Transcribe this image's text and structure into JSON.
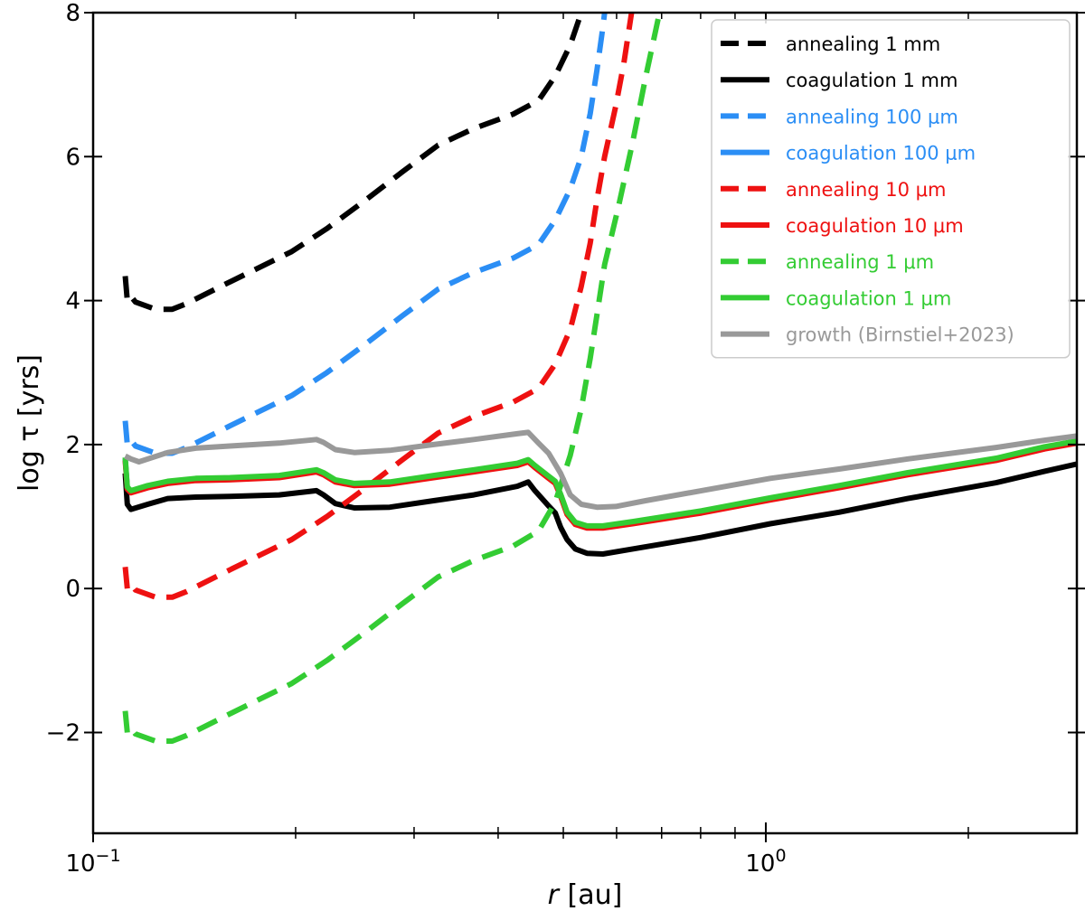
{
  "chart_data": {
    "type": "line",
    "xlabel": "r [au]",
    "ylabel": "log τ [yrs]",
    "xscale": "log",
    "xlim": [
      0.1,
      2.9
    ],
    "ylim": [
      -3.4,
      8
    ],
    "grid": false,
    "legend_position": "top-right",
    "x_ticks": [
      {
        "value": 0.1,
        "base": "10",
        "exp": "−1"
      },
      {
        "value": 1,
        "base": "10",
        "exp": "0"
      }
    ],
    "y_ticks": [
      {
        "value": -2,
        "label": "−2"
      },
      {
        "value": 0,
        "label": "0"
      },
      {
        "value": 2,
        "label": "2"
      },
      {
        "value": 4,
        "label": "4"
      },
      {
        "value": 6,
        "label": "6"
      },
      {
        "value": 8,
        "label": "8"
      }
    ],
    "minor_x_ticks": [
      0.2,
      0.3,
      0.4,
      0.5,
      0.6,
      0.7,
      0.8,
      0.9,
      2
    ],
    "series": [
      {
        "name": "annealing 1 mm",
        "color": "#000000",
        "dash": true,
        "points": [
          [
            0.1116,
            4.34
          ],
          [
            0.1124,
            4.0
          ],
          [
            0.1138,
            4.06
          ],
          [
            0.1156,
            3.98
          ],
          [
            0.1238,
            3.88
          ],
          [
            0.1311,
            3.88
          ],
          [
            0.1378,
            3.96
          ],
          [
            0.1597,
            4.26
          ],
          [
            0.1973,
            4.68
          ],
          [
            0.2226,
            5.0
          ],
          [
            0.2527,
            5.38
          ],
          [
            0.2884,
            5.79
          ],
          [
            0.3258,
            6.16
          ],
          [
            0.368,
            6.39
          ],
          [
            0.4211,
            6.59
          ],
          [
            0.4593,
            6.78
          ],
          [
            0.4864,
            7.12
          ],
          [
            0.5121,
            7.55
          ],
          [
            0.5317,
            8.0
          ]
        ]
      },
      {
        "name": "coagulation 1 mm",
        "color": "#000000",
        "dash": false,
        "points": [
          [
            0.1116,
            1.6
          ],
          [
            0.1124,
            1.17
          ],
          [
            0.1138,
            1.1
          ],
          [
            0.1205,
            1.17
          ],
          [
            0.1291,
            1.25
          ],
          [
            0.1421,
            1.27
          ],
          [
            0.1597,
            1.28
          ],
          [
            0.189,
            1.3
          ],
          [
            0.2148,
            1.36
          ],
          [
            0.22,
            1.3
          ],
          [
            0.2291,
            1.18
          ],
          [
            0.2445,
            1.12
          ],
          [
            0.276,
            1.13
          ],
          [
            0.3208,
            1.22
          ],
          [
            0.368,
            1.3
          ],
          [
            0.4271,
            1.42
          ],
          [
            0.4434,
            1.48
          ],
          [
            0.4536,
            1.36
          ],
          [
            0.474,
            1.16
          ],
          [
            0.4864,
            1.05
          ],
          [
            0.4955,
            0.85
          ],
          [
            0.5065,
            0.68
          ],
          [
            0.5209,
            0.55
          ],
          [
            0.5422,
            0.49
          ],
          [
            0.5725,
            0.48
          ],
          [
            0.634,
            0.55
          ],
          [
            0.8024,
            0.71
          ],
          [
            1.0154,
            0.9
          ],
          [
            1.2845,
            1.06
          ],
          [
            1.6258,
            1.25
          ],
          [
            2.2003,
            1.47
          ],
          [
            2.5985,
            1.63
          ],
          [
            2.9,
            1.73
          ]
        ]
      },
      {
        "name": "annealing 100 μm",
        "color": "#2b8ef5",
        "dash": true,
        "points": [
          [
            0.1116,
            2.33
          ],
          [
            0.1124,
            2.0
          ],
          [
            0.1138,
            2.06
          ],
          [
            0.1156,
            1.98
          ],
          [
            0.1238,
            1.88
          ],
          [
            0.1311,
            1.88
          ],
          [
            0.1378,
            1.96
          ],
          [
            0.1597,
            2.26
          ],
          [
            0.1973,
            2.68
          ],
          [
            0.2226,
            3.0
          ],
          [
            0.2527,
            3.38
          ],
          [
            0.2884,
            3.79
          ],
          [
            0.3258,
            4.16
          ],
          [
            0.368,
            4.39
          ],
          [
            0.4211,
            4.59
          ],
          [
            0.4593,
            4.78
          ],
          [
            0.4864,
            5.12
          ],
          [
            0.5121,
            5.55
          ],
          [
            0.5317,
            6.0
          ],
          [
            0.5482,
            6.6
          ],
          [
            0.5609,
            7.2
          ],
          [
            0.5725,
            7.8
          ],
          [
            0.5759,
            8.0
          ]
        ]
      },
      {
        "name": "coagulation 100 μm",
        "color": "#2b8ef5",
        "dash": false,
        "points": [
          [
            0.1116,
            1.8
          ],
          [
            0.1124,
            1.4
          ],
          [
            0.1138,
            1.35
          ],
          [
            0.1205,
            1.42
          ],
          [
            0.1291,
            1.48
          ],
          [
            0.1421,
            1.52
          ],
          [
            0.1597,
            1.53
          ],
          [
            0.189,
            1.56
          ],
          [
            0.2148,
            1.64
          ],
          [
            0.22,
            1.6
          ],
          [
            0.2291,
            1.5
          ],
          [
            0.2445,
            1.45
          ],
          [
            0.276,
            1.47
          ],
          [
            0.3208,
            1.56
          ],
          [
            0.368,
            1.64
          ],
          [
            0.4271,
            1.73
          ],
          [
            0.4434,
            1.78
          ],
          [
            0.4536,
            1.7
          ],
          [
            0.474,
            1.56
          ],
          [
            0.4864,
            1.48
          ],
          [
            0.4955,
            1.3
          ],
          [
            0.5065,
            1.05
          ],
          [
            0.5209,
            0.91
          ],
          [
            0.5422,
            0.86
          ],
          [
            0.5725,
            0.86
          ],
          [
            0.634,
            0.92
          ],
          [
            0.8024,
            1.07
          ],
          [
            1.0154,
            1.25
          ],
          [
            1.2845,
            1.42
          ],
          [
            1.6258,
            1.6
          ],
          [
            2.2003,
            1.8
          ],
          [
            2.5985,
            1.96
          ],
          [
            2.9,
            2.04
          ]
        ]
      },
      {
        "name": "annealing 10 μm",
        "color": "#ee1111",
        "dash": true,
        "points": [
          [
            0.1116,
            0.3
          ],
          [
            0.1124,
            0.0
          ],
          [
            0.1138,
            0.06
          ],
          [
            0.1156,
            -0.02
          ],
          [
            0.1238,
            -0.12
          ],
          [
            0.1311,
            -0.12
          ],
          [
            0.1378,
            -0.04
          ],
          [
            0.1597,
            0.26
          ],
          [
            0.1973,
            0.68
          ],
          [
            0.2226,
            1.0
          ],
          [
            0.2527,
            1.38
          ],
          [
            0.2884,
            1.79
          ],
          [
            0.3258,
            2.16
          ],
          [
            0.368,
            2.39
          ],
          [
            0.4211,
            2.59
          ],
          [
            0.4593,
            2.78
          ],
          [
            0.4864,
            3.12
          ],
          [
            0.5121,
            3.6
          ],
          [
            0.5317,
            4.2
          ],
          [
            0.5482,
            4.8
          ],
          [
            0.5609,
            5.4
          ],
          [
            0.5759,
            6.0
          ],
          [
            0.5982,
            6.7
          ],
          [
            0.6151,
            7.3
          ],
          [
            0.6315,
            8.0
          ]
        ]
      },
      {
        "name": "coagulation 10 μm",
        "color": "#ee1111",
        "dash": false,
        "points": [
          [
            0.1116,
            1.78
          ],
          [
            0.1124,
            1.38
          ],
          [
            0.1138,
            1.33
          ],
          [
            0.1205,
            1.4
          ],
          [
            0.1291,
            1.46
          ],
          [
            0.1421,
            1.5
          ],
          [
            0.1597,
            1.51
          ],
          [
            0.189,
            1.54
          ],
          [
            0.2148,
            1.62
          ],
          [
            0.22,
            1.58
          ],
          [
            0.2291,
            1.48
          ],
          [
            0.2445,
            1.43
          ],
          [
            0.276,
            1.45
          ],
          [
            0.3208,
            1.54
          ],
          [
            0.368,
            1.62
          ],
          [
            0.4271,
            1.71
          ],
          [
            0.4434,
            1.76
          ],
          [
            0.4536,
            1.68
          ],
          [
            0.474,
            1.54
          ],
          [
            0.4864,
            1.46
          ],
          [
            0.4955,
            1.28
          ],
          [
            0.5065,
            1.03
          ],
          [
            0.5209,
            0.89
          ],
          [
            0.5422,
            0.84
          ],
          [
            0.5725,
            0.84
          ],
          [
            0.634,
            0.9
          ],
          [
            0.8024,
            1.05
          ],
          [
            1.0154,
            1.23
          ],
          [
            1.2845,
            1.4
          ],
          [
            1.6258,
            1.58
          ],
          [
            2.2003,
            1.78
          ],
          [
            2.5985,
            1.94
          ],
          [
            2.9,
            2.02
          ]
        ]
      },
      {
        "name": "annealing 1 μm",
        "color": "#33cc33",
        "dash": true,
        "points": [
          [
            0.1116,
            -1.7
          ],
          [
            0.1124,
            -2.0
          ],
          [
            0.1138,
            -1.94
          ],
          [
            0.1156,
            -2.02
          ],
          [
            0.1238,
            -2.12
          ],
          [
            0.1311,
            -2.12
          ],
          [
            0.1378,
            -2.04
          ],
          [
            0.1597,
            -1.74
          ],
          [
            0.1973,
            -1.32
          ],
          [
            0.2226,
            -1.0
          ],
          [
            0.2527,
            -0.62
          ],
          [
            0.2884,
            -0.21
          ],
          [
            0.3258,
            0.16
          ],
          [
            0.368,
            0.39
          ],
          [
            0.4211,
            0.59
          ],
          [
            0.4593,
            0.8
          ],
          [
            0.4864,
            1.2
          ],
          [
            0.5121,
            1.85
          ],
          [
            0.5317,
            2.5
          ],
          [
            0.5482,
            3.2
          ],
          [
            0.5609,
            3.8
          ],
          [
            0.5759,
            4.5
          ],
          [
            0.6037,
            5.3
          ],
          [
            0.634,
            6.2
          ],
          [
            0.6626,
            7.1
          ],
          [
            0.695,
            8.0
          ]
        ]
      },
      {
        "name": "coagulation 1 μm",
        "color": "#33cc33",
        "dash": false,
        "points": [
          [
            0.1116,
            1.82
          ],
          [
            0.1124,
            1.41
          ],
          [
            0.1138,
            1.36
          ],
          [
            0.1205,
            1.43
          ],
          [
            0.1291,
            1.49
          ],
          [
            0.1421,
            1.53
          ],
          [
            0.1597,
            1.54
          ],
          [
            0.189,
            1.57
          ],
          [
            0.2148,
            1.65
          ],
          [
            0.22,
            1.61
          ],
          [
            0.2291,
            1.51
          ],
          [
            0.2445,
            1.46
          ],
          [
            0.276,
            1.48
          ],
          [
            0.3208,
            1.57
          ],
          [
            0.368,
            1.65
          ],
          [
            0.4271,
            1.74
          ],
          [
            0.4434,
            1.79
          ],
          [
            0.4536,
            1.71
          ],
          [
            0.474,
            1.57
          ],
          [
            0.4864,
            1.49
          ],
          [
            0.4955,
            1.31
          ],
          [
            0.5065,
            1.06
          ],
          [
            0.5209,
            0.92
          ],
          [
            0.5422,
            0.87
          ],
          [
            0.5725,
            0.87
          ],
          [
            0.634,
            0.93
          ],
          [
            0.8024,
            1.08
          ],
          [
            1.0154,
            1.26
          ],
          [
            1.2845,
            1.43
          ],
          [
            1.6258,
            1.61
          ],
          [
            2.2003,
            1.81
          ],
          [
            2.5985,
            1.97
          ],
          [
            2.9,
            2.05
          ]
        ]
      },
      {
        "name": "growth (Birnstiel+2023)",
        "color": "#999999",
        "dash": false,
        "points": [
          [
            0.1116,
            1.84
          ],
          [
            0.1138,
            1.8
          ],
          [
            0.117,
            1.76
          ],
          [
            0.1291,
            1.89
          ],
          [
            0.1421,
            1.95
          ],
          [
            0.1597,
            1.98
          ],
          [
            0.189,
            2.02
          ],
          [
            0.2148,
            2.07
          ],
          [
            0.22,
            2.03
          ],
          [
            0.2291,
            1.93
          ],
          [
            0.2445,
            1.89
          ],
          [
            0.276,
            1.92
          ],
          [
            0.3208,
            2.0
          ],
          [
            0.368,
            2.07
          ],
          [
            0.4271,
            2.15
          ],
          [
            0.4434,
            2.17
          ],
          [
            0.4593,
            2.02
          ],
          [
            0.4755,
            1.88
          ],
          [
            0.4955,
            1.6
          ],
          [
            0.5121,
            1.3
          ],
          [
            0.5317,
            1.17
          ],
          [
            0.5609,
            1.13
          ],
          [
            0.5982,
            1.14
          ],
          [
            0.6626,
            1.22
          ],
          [
            0.8024,
            1.36
          ],
          [
            1.0154,
            1.53
          ],
          [
            1.2845,
            1.66
          ],
          [
            1.6258,
            1.8
          ],
          [
            2.2003,
            1.96
          ],
          [
            2.5985,
            2.06
          ],
          [
            2.9,
            2.12
          ]
        ]
      }
    ]
  }
}
